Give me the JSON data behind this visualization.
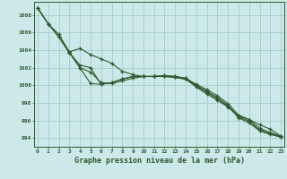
{
  "xlabel": "Graphe pression niveau de la mer (hPa)",
  "bg_color": "#cce8e8",
  "grid_color": "#aad0d0",
  "line_color": "#2d5a2d",
  "x_ticks": [
    0,
    1,
    2,
    3,
    4,
    5,
    6,
    7,
    8,
    9,
    10,
    11,
    12,
    13,
    14,
    15,
    16,
    17,
    18,
    19,
    20,
    21,
    22,
    23
  ],
  "ylim": [
    993.0,
    1009.5
  ],
  "xlim": [
    -0.3,
    23.3
  ],
  "yticks": [
    994,
    996,
    998,
    1000,
    1002,
    1004,
    1006,
    1008
  ],
  "line1_x": [
    0,
    1,
    2,
    3,
    4,
    5,
    6,
    7,
    8,
    9,
    10,
    11,
    12,
    13,
    14,
    15,
    16,
    17,
    18,
    19,
    20,
    21,
    22,
    23
  ],
  "line1_y": [
    1008.8,
    1007.0,
    1005.8,
    1003.8,
    1004.2,
    1003.5,
    1003.0,
    1002.5,
    1001.6,
    1001.2,
    1001.0,
    1001.0,
    1001.1,
    1001.0,
    1000.8,
    1000.1,
    999.5,
    998.8,
    997.9,
    996.6,
    996.1,
    995.1,
    994.6,
    994.2
  ],
  "line2_x": [
    0,
    1,
    2,
    3,
    4,
    5,
    6,
    7,
    8,
    9,
    10,
    11,
    12,
    13,
    14,
    15,
    16,
    17,
    18,
    19,
    20,
    21,
    22,
    23
  ],
  "line2_y": [
    1008.8,
    1007.0,
    1005.5,
    1003.7,
    1002.0,
    1001.5,
    1000.3,
    1000.2,
    1000.5,
    1000.8,
    1001.0,
    1001.0,
    1001.1,
    1001.0,
    1000.8,
    1000.0,
    999.3,
    998.6,
    997.7,
    996.4,
    995.9,
    994.9,
    994.5,
    994.1
  ],
  "line3_x": [
    0,
    1,
    2,
    3,
    4,
    5,
    6,
    7,
    8,
    9,
    10,
    11,
    12,
    13,
    14,
    15,
    16,
    17,
    18,
    19,
    20,
    21,
    22,
    23
  ],
  "line3_y": [
    1008.8,
    1007.0,
    1005.5,
    1003.7,
    1002.3,
    1002.0,
    1000.1,
    1000.3,
    1000.7,
    1001.0,
    1001.0,
    1001.0,
    1001.0,
    1000.9,
    1000.7,
    999.9,
    999.2,
    998.4,
    997.6,
    996.3,
    995.7,
    994.8,
    994.4,
    994.1
  ],
  "line4_x": [
    3,
    4,
    5,
    6,
    7,
    8,
    9,
    10,
    11,
    12,
    13,
    14,
    15,
    16,
    17,
    18,
    19,
    20,
    21,
    22,
    23
  ],
  "line4_y": [
    1003.8,
    1002.0,
    1000.2,
    1000.1,
    1000.3,
    1000.7,
    1001.0,
    1001.0,
    1001.0,
    1001.0,
    1000.9,
    1000.7,
    999.8,
    999.0,
    998.3,
    997.5,
    996.5,
    996.1,
    995.5,
    995.0,
    994.2
  ]
}
